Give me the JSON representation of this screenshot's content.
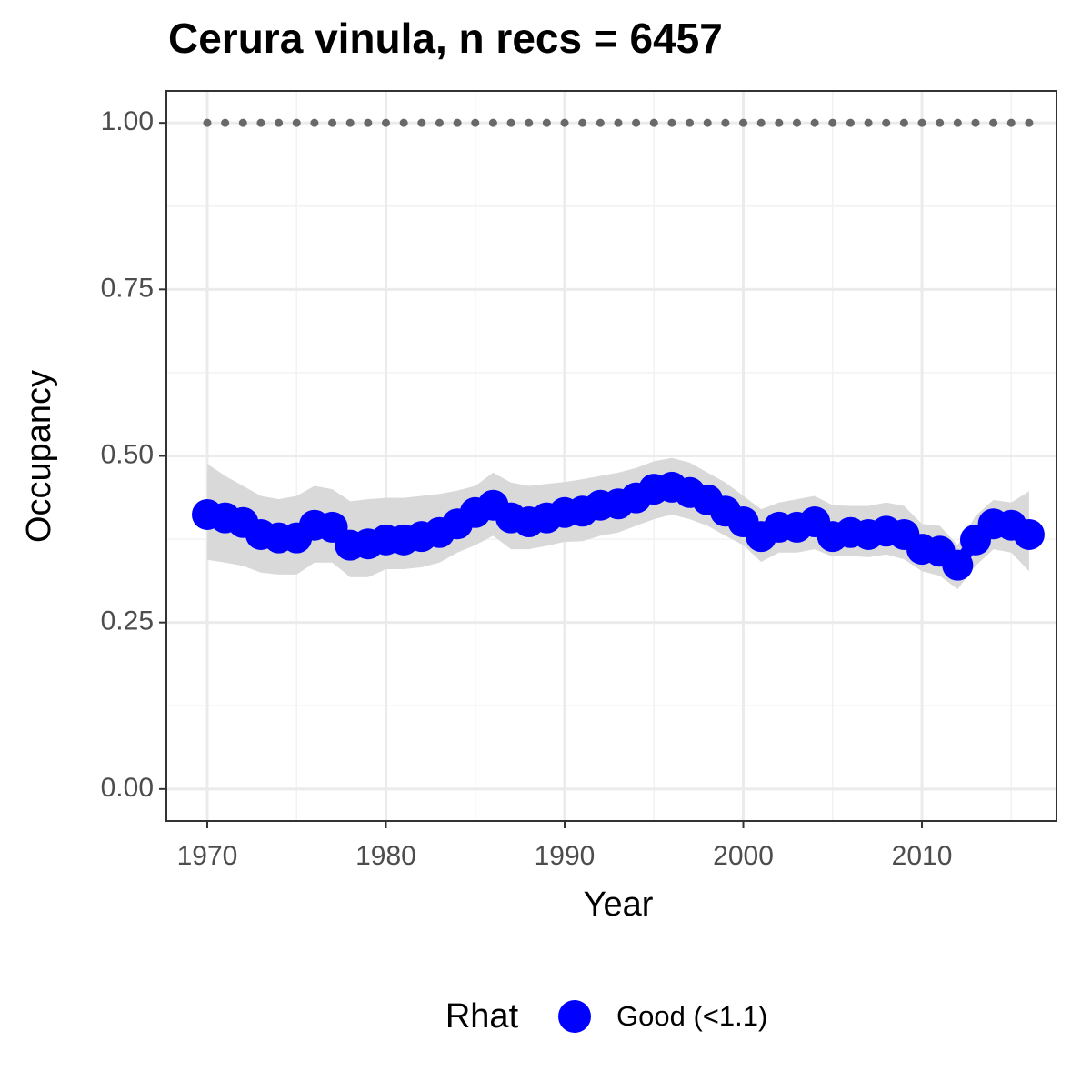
{
  "chart_data": {
    "type": "line",
    "title": "Cerura vinula, n recs = 6457",
    "x_label": "Year",
    "y_label": "Occupancy",
    "x": [
      1970,
      1971,
      1972,
      1973,
      1974,
      1975,
      1976,
      1977,
      1978,
      1979,
      1980,
      1981,
      1982,
      1983,
      1984,
      1985,
      1986,
      1987,
      1988,
      1989,
      1990,
      1991,
      1992,
      1993,
      1994,
      1995,
      1996,
      1997,
      1998,
      1999,
      2000,
      2001,
      2002,
      2003,
      2004,
      2005,
      2006,
      2007,
      2008,
      2009,
      2010,
      2011,
      2012,
      2013,
      2014,
      2015,
      2016
    ],
    "series": [
      {
        "name": "Good (<1.1)",
        "color": "#0000ff",
        "ribbon_color": "#d9d9d9",
        "values": [
          0.412,
          0.407,
          0.4,
          0.382,
          0.377,
          0.377,
          0.396,
          0.393,
          0.366,
          0.368,
          0.374,
          0.374,
          0.379,
          0.385,
          0.398,
          0.415,
          0.426,
          0.407,
          0.401,
          0.407,
          0.415,
          0.417,
          0.426,
          0.428,
          0.437,
          0.45,
          0.453,
          0.445,
          0.434,
          0.417,
          0.401,
          0.379,
          0.393,
          0.393,
          0.401,
          0.379,
          0.385,
          0.382,
          0.387,
          0.382,
          0.36,
          0.357,
          0.336,
          0.374,
          0.398,
          0.396,
          0.382
        ],
        "upper": [
          0.488,
          0.47,
          0.455,
          0.44,
          0.435,
          0.44,
          0.455,
          0.45,
          0.432,
          0.435,
          0.437,
          0.437,
          0.44,
          0.443,
          0.448,
          0.455,
          0.475,
          0.46,
          0.455,
          0.458,
          0.461,
          0.465,
          0.47,
          0.475,
          0.482,
          0.492,
          0.497,
          0.49,
          0.475,
          0.46,
          0.44,
          0.42,
          0.43,
          0.435,
          0.44,
          0.426,
          0.425,
          0.425,
          0.43,
          0.425,
          0.398,
          0.395,
          0.366,
          0.41,
          0.434,
          0.43,
          0.447
        ],
        "lower": [
          0.344,
          0.34,
          0.335,
          0.325,
          0.322,
          0.322,
          0.34,
          0.34,
          0.318,
          0.318,
          0.33,
          0.33,
          0.333,
          0.34,
          0.355,
          0.366,
          0.38,
          0.36,
          0.36,
          0.365,
          0.371,
          0.372,
          0.38,
          0.385,
          0.395,
          0.405,
          0.412,
          0.405,
          0.395,
          0.38,
          0.366,
          0.341,
          0.355,
          0.355,
          0.36,
          0.349,
          0.35,
          0.348,
          0.352,
          0.345,
          0.327,
          0.32,
          0.3,
          0.335,
          0.36,
          0.355,
          0.327
        ]
      },
      {
        "color": "#696969",
        "values": [
          1,
          1,
          1,
          1,
          1,
          1,
          1,
          1,
          1,
          1,
          1,
          1,
          1,
          1,
          1,
          1,
          1,
          1,
          1,
          1,
          1,
          1,
          1,
          1,
          1,
          1,
          1,
          1,
          1,
          1,
          1,
          1,
          1,
          1,
          1,
          1,
          1,
          1,
          1,
          1,
          1,
          1,
          1,
          1,
          1,
          1,
          1
        ]
      }
    ],
    "legend_title": "Rhat",
    "legend": "bottom",
    "xlim": [
      1967.71,
      2017.53
    ],
    "xticks": [
      1970,
      1980,
      1990,
      2000,
      2010
    ],
    "ylim": [
      -0.048,
      1.048
    ],
    "yticks": [
      {
        "value": 0,
        "label": "0.00"
      },
      0.25,
      {
        "value": 0.5,
        "label": "0.50"
      },
      0.75,
      {
        "value": 1,
        "label": "1.00"
      }
    ],
    "grid": true
  }
}
